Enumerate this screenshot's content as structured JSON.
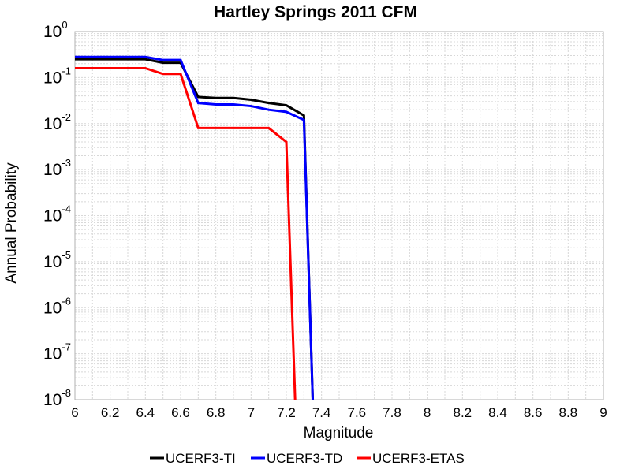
{
  "chart_data": {
    "type": "line",
    "title": "Hartley Springs 2011 CFM",
    "xlabel": "Magnitude",
    "ylabel": "Annual Probability",
    "xlim": [
      6,
      9
    ],
    "ylim": [
      1e-08,
      1
    ],
    "yscale": "log",
    "grid": true,
    "legend_placement": "bottom-center",
    "x_ticks": [
      "6",
      "6.2",
      "6.4",
      "6.6",
      "6.8",
      "7",
      "7.2",
      "7.4",
      "7.6",
      "7.8",
      "8",
      "8.2",
      "8.4",
      "8.6",
      "8.8",
      "9"
    ],
    "y_ticks": [
      {
        "base": "10",
        "exp": "0"
      },
      {
        "base": "10",
        "exp": "-1"
      },
      {
        "base": "10",
        "exp": "-2"
      },
      {
        "base": "10",
        "exp": "-3"
      },
      {
        "base": "10",
        "exp": "-4"
      },
      {
        "base": "10",
        "exp": "-5"
      },
      {
        "base": "10",
        "exp": "-6"
      },
      {
        "base": "10",
        "exp": "-7"
      },
      {
        "base": "10",
        "exp": "-8"
      }
    ],
    "series": [
      {
        "name": "UCERF3-TI",
        "color": "#000000",
        "x": [
          6.0,
          6.1,
          6.2,
          6.3,
          6.4,
          6.5,
          6.6,
          6.7,
          6.8,
          6.9,
          7.0,
          7.1,
          7.2,
          7.3,
          7.35
        ],
        "y": [
          0.25,
          0.25,
          0.25,
          0.25,
          0.25,
          0.21,
          0.21,
          0.038,
          0.036,
          0.036,
          0.033,
          0.028,
          0.025,
          0.015,
          1e-09
        ]
      },
      {
        "name": "UCERF3-TD",
        "color": "#0000ff",
        "x": [
          6.0,
          6.1,
          6.2,
          6.3,
          6.4,
          6.5,
          6.6,
          6.7,
          6.8,
          6.9,
          7.0,
          7.1,
          7.2,
          7.3,
          7.35
        ],
        "y": [
          0.28,
          0.28,
          0.28,
          0.28,
          0.28,
          0.24,
          0.24,
          0.028,
          0.026,
          0.026,
          0.024,
          0.02,
          0.018,
          0.012,
          1e-09
        ]
      },
      {
        "name": "UCERF3-ETAS",
        "color": "#ff0000",
        "x": [
          6.0,
          6.1,
          6.2,
          6.3,
          6.4,
          6.5,
          6.6,
          6.7,
          6.8,
          6.9,
          7.0,
          7.1,
          7.2,
          7.25
        ],
        "y": [
          0.16,
          0.16,
          0.16,
          0.16,
          0.16,
          0.12,
          0.12,
          0.008,
          0.008,
          0.008,
          0.008,
          0.008,
          0.004,
          1e-09
        ]
      }
    ]
  }
}
